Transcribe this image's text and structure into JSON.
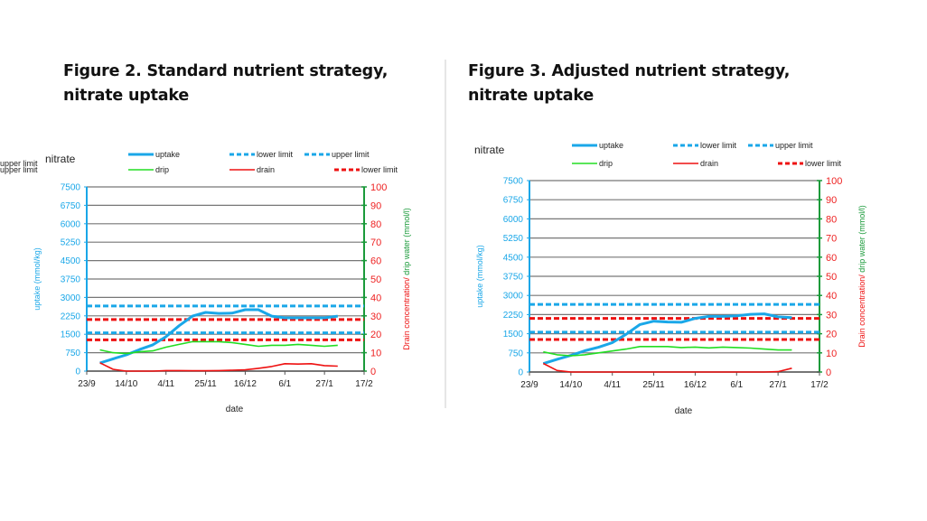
{
  "figures": [
    {
      "title_line1": "Figure 2. Standard nutrient strategy,",
      "title_line2": "nitrate uptake"
    },
    {
      "title_line1": "Figure 3. Adjusted nutrient strategy,",
      "title_line2": "nitrate uptake"
    }
  ],
  "colors": {
    "uptake": "#1aa7e8",
    "drip": "#22dd22",
    "drain": "#ee1111",
    "left_axis": "#1aa7e8",
    "right_axis_line": "#1a9a3a",
    "right_tick_label": "#ee2222",
    "grid": "#777777"
  },
  "chart_data": [
    {
      "type": "line",
      "title": "nitrate",
      "xlabel": "date",
      "ylabel": "uptake (mmol/kg)",
      "y2label_part1": "Drain concentration/",
      "y2label_part2": " drip water (mmol/l)",
      "x_unit": "days since 23/9",
      "xlim": [
        0,
        147
      ],
      "x_ticks": [
        0,
        21,
        42,
        63,
        84,
        105,
        126,
        147
      ],
      "x_tick_labels": [
        "23/9",
        "14/10",
        "4/11",
        "25/11",
        "16/12",
        "6/1",
        "27/1",
        "17/2"
      ],
      "ylim": [
        0,
        7500
      ],
      "y_ticks": [
        0,
        750,
        1500,
        2250,
        3000,
        3750,
        4500,
        5250,
        6000,
        6750,
        7500
      ],
      "y2lim": [
        0,
        100
      ],
      "y2_ticks": [
        0,
        10,
        20,
        30,
        40,
        50,
        60,
        70,
        80,
        90,
        100
      ],
      "grid": true,
      "legend": [
        {
          "label": "uptake",
          "series": "uptake",
          "style": "solid"
        },
        {
          "label": "lower limit",
          "series": "uptake",
          "style": "dashed"
        },
        {
          "label": "upper limit",
          "series": "uptake",
          "style": "dashed"
        },
        {
          "label": "drip",
          "series": "drip",
          "style": "solid"
        },
        {
          "label": "drain",
          "series": "drain",
          "style": "solid"
        },
        {
          "label": "lower limit",
          "series": "drain",
          "style": "dashed"
        },
        {
          "label": "upper limit",
          "series": "drain",
          "style": "dashed"
        }
      ],
      "legend_position": "top",
      "limits": {
        "uptake_lower": 1560,
        "uptake_upper": 2650,
        "drain_lower": 17,
        "drain_upper": 28
      },
      "series": [
        {
          "name": "uptake",
          "axis": "left",
          "x": [
            7,
            14,
            21,
            28,
            35,
            42,
            49,
            56,
            63,
            70,
            77,
            84,
            91,
            98,
            105,
            112,
            119,
            126,
            133
          ],
          "y": [
            330,
            500,
            660,
            880,
            1070,
            1400,
            1850,
            2240,
            2390,
            2350,
            2360,
            2500,
            2500,
            2240,
            2170,
            2170,
            2170,
            2170,
            2240
          ]
        },
        {
          "name": "drip",
          "axis": "right",
          "x": [
            7,
            14,
            21,
            28,
            35,
            42,
            49,
            56,
            63,
            70,
            77,
            84,
            91,
            98,
            105,
            112,
            119,
            126,
            133
          ],
          "y": [
            11.5,
            10,
            9.5,
            10.5,
            11,
            13,
            14.5,
            16,
            16,
            16,
            15.5,
            14.5,
            13.5,
            14,
            14,
            14.5,
            14,
            13.5,
            14
          ]
        },
        {
          "name": "drain",
          "axis": "right",
          "x": [
            7,
            14,
            21,
            28,
            35,
            42,
            49,
            56,
            63,
            70,
            77,
            84,
            91,
            98,
            105,
            112,
            119,
            126,
            133
          ],
          "y": [
            4.5,
            1,
            0,
            0,
            0,
            0.3,
            0.3,
            0.2,
            0.2,
            0.3,
            0.5,
            0.7,
            1.5,
            2.5,
            4,
            3.8,
            4,
            3,
            2.7
          ]
        }
      ]
    },
    {
      "type": "line",
      "title": "nitrate",
      "xlabel": "date",
      "ylabel": "uptake (mmol/kg)",
      "y2label_part1": "Drain concentration/",
      "y2label_part2": " drip water (mmol/l)",
      "x_unit": "days since 23/9",
      "xlim": [
        0,
        147
      ],
      "x_ticks": [
        0,
        21,
        42,
        63,
        84,
        105,
        126,
        147
      ],
      "x_tick_labels": [
        "23/9",
        "14/10",
        "4/11",
        "25/11",
        "16/12",
        "6/1",
        "27/1",
        "17/2"
      ],
      "ylim": [
        0,
        7500
      ],
      "y_ticks": [
        0,
        750,
        1500,
        2250,
        3000,
        3750,
        4500,
        5250,
        6000,
        6750,
        7500
      ],
      "y2lim": [
        0,
        100
      ],
      "y2_ticks": [
        0,
        10,
        20,
        30,
        40,
        50,
        60,
        70,
        80,
        90,
        100
      ],
      "grid": true,
      "legend": [
        {
          "label": "uptake",
          "series": "uptake",
          "style": "solid"
        },
        {
          "label": "lower limit",
          "series": "uptake",
          "style": "dashed"
        },
        {
          "label": "upper limit",
          "series": "uptake",
          "style": "dashed"
        },
        {
          "label": "drip",
          "series": "drip",
          "style": "solid"
        },
        {
          "label": "drain",
          "series": "drain",
          "style": "solid"
        },
        {
          "label": "lower limit",
          "series": "drain",
          "style": "dashed"
        },
        {
          "label": "upper limit",
          "series": "drain",
          "style": "dashed"
        }
      ],
      "legend_position": "top",
      "limits": {
        "uptake_lower": 1560,
        "uptake_upper": 2650,
        "drain_lower": 17,
        "drain_upper": 28
      },
      "series": [
        {
          "name": "uptake",
          "axis": "left",
          "x": [
            7,
            14,
            21,
            28,
            35,
            42,
            49,
            56,
            63,
            70,
            77,
            84,
            91,
            98,
            105,
            112,
            119,
            126,
            133
          ],
          "y": [
            330,
            500,
            650,
            830,
            970,
            1150,
            1480,
            1860,
            1990,
            1960,
            1950,
            2100,
            2180,
            2180,
            2200,
            2260,
            2280,
            2160,
            2130
          ]
        },
        {
          "name": "drip",
          "axis": "right",
          "x": [
            7,
            14,
            21,
            28,
            35,
            42,
            49,
            56,
            63,
            70,
            77,
            84,
            91,
            98,
            105,
            112,
            119,
            126,
            133
          ],
          "y": [
            10.5,
            9,
            8.5,
            9,
            10,
            11,
            12,
            13.3,
            13.3,
            13.3,
            12.8,
            13,
            12.6,
            13,
            12.8,
            12.5,
            12,
            11.5,
            11.5
          ]
        },
        {
          "name": "drain",
          "axis": "right",
          "x": [
            7,
            14,
            21,
            28,
            35,
            42,
            49,
            56,
            63,
            70,
            77,
            84,
            91,
            98,
            105,
            112,
            119,
            126,
            133
          ],
          "y": [
            4.5,
            0.8,
            0,
            0,
            0,
            0,
            0,
            0,
            0,
            0,
            0,
            0,
            0,
            0,
            0,
            0,
            0,
            0.2,
            2
          ]
        }
      ]
    }
  ]
}
